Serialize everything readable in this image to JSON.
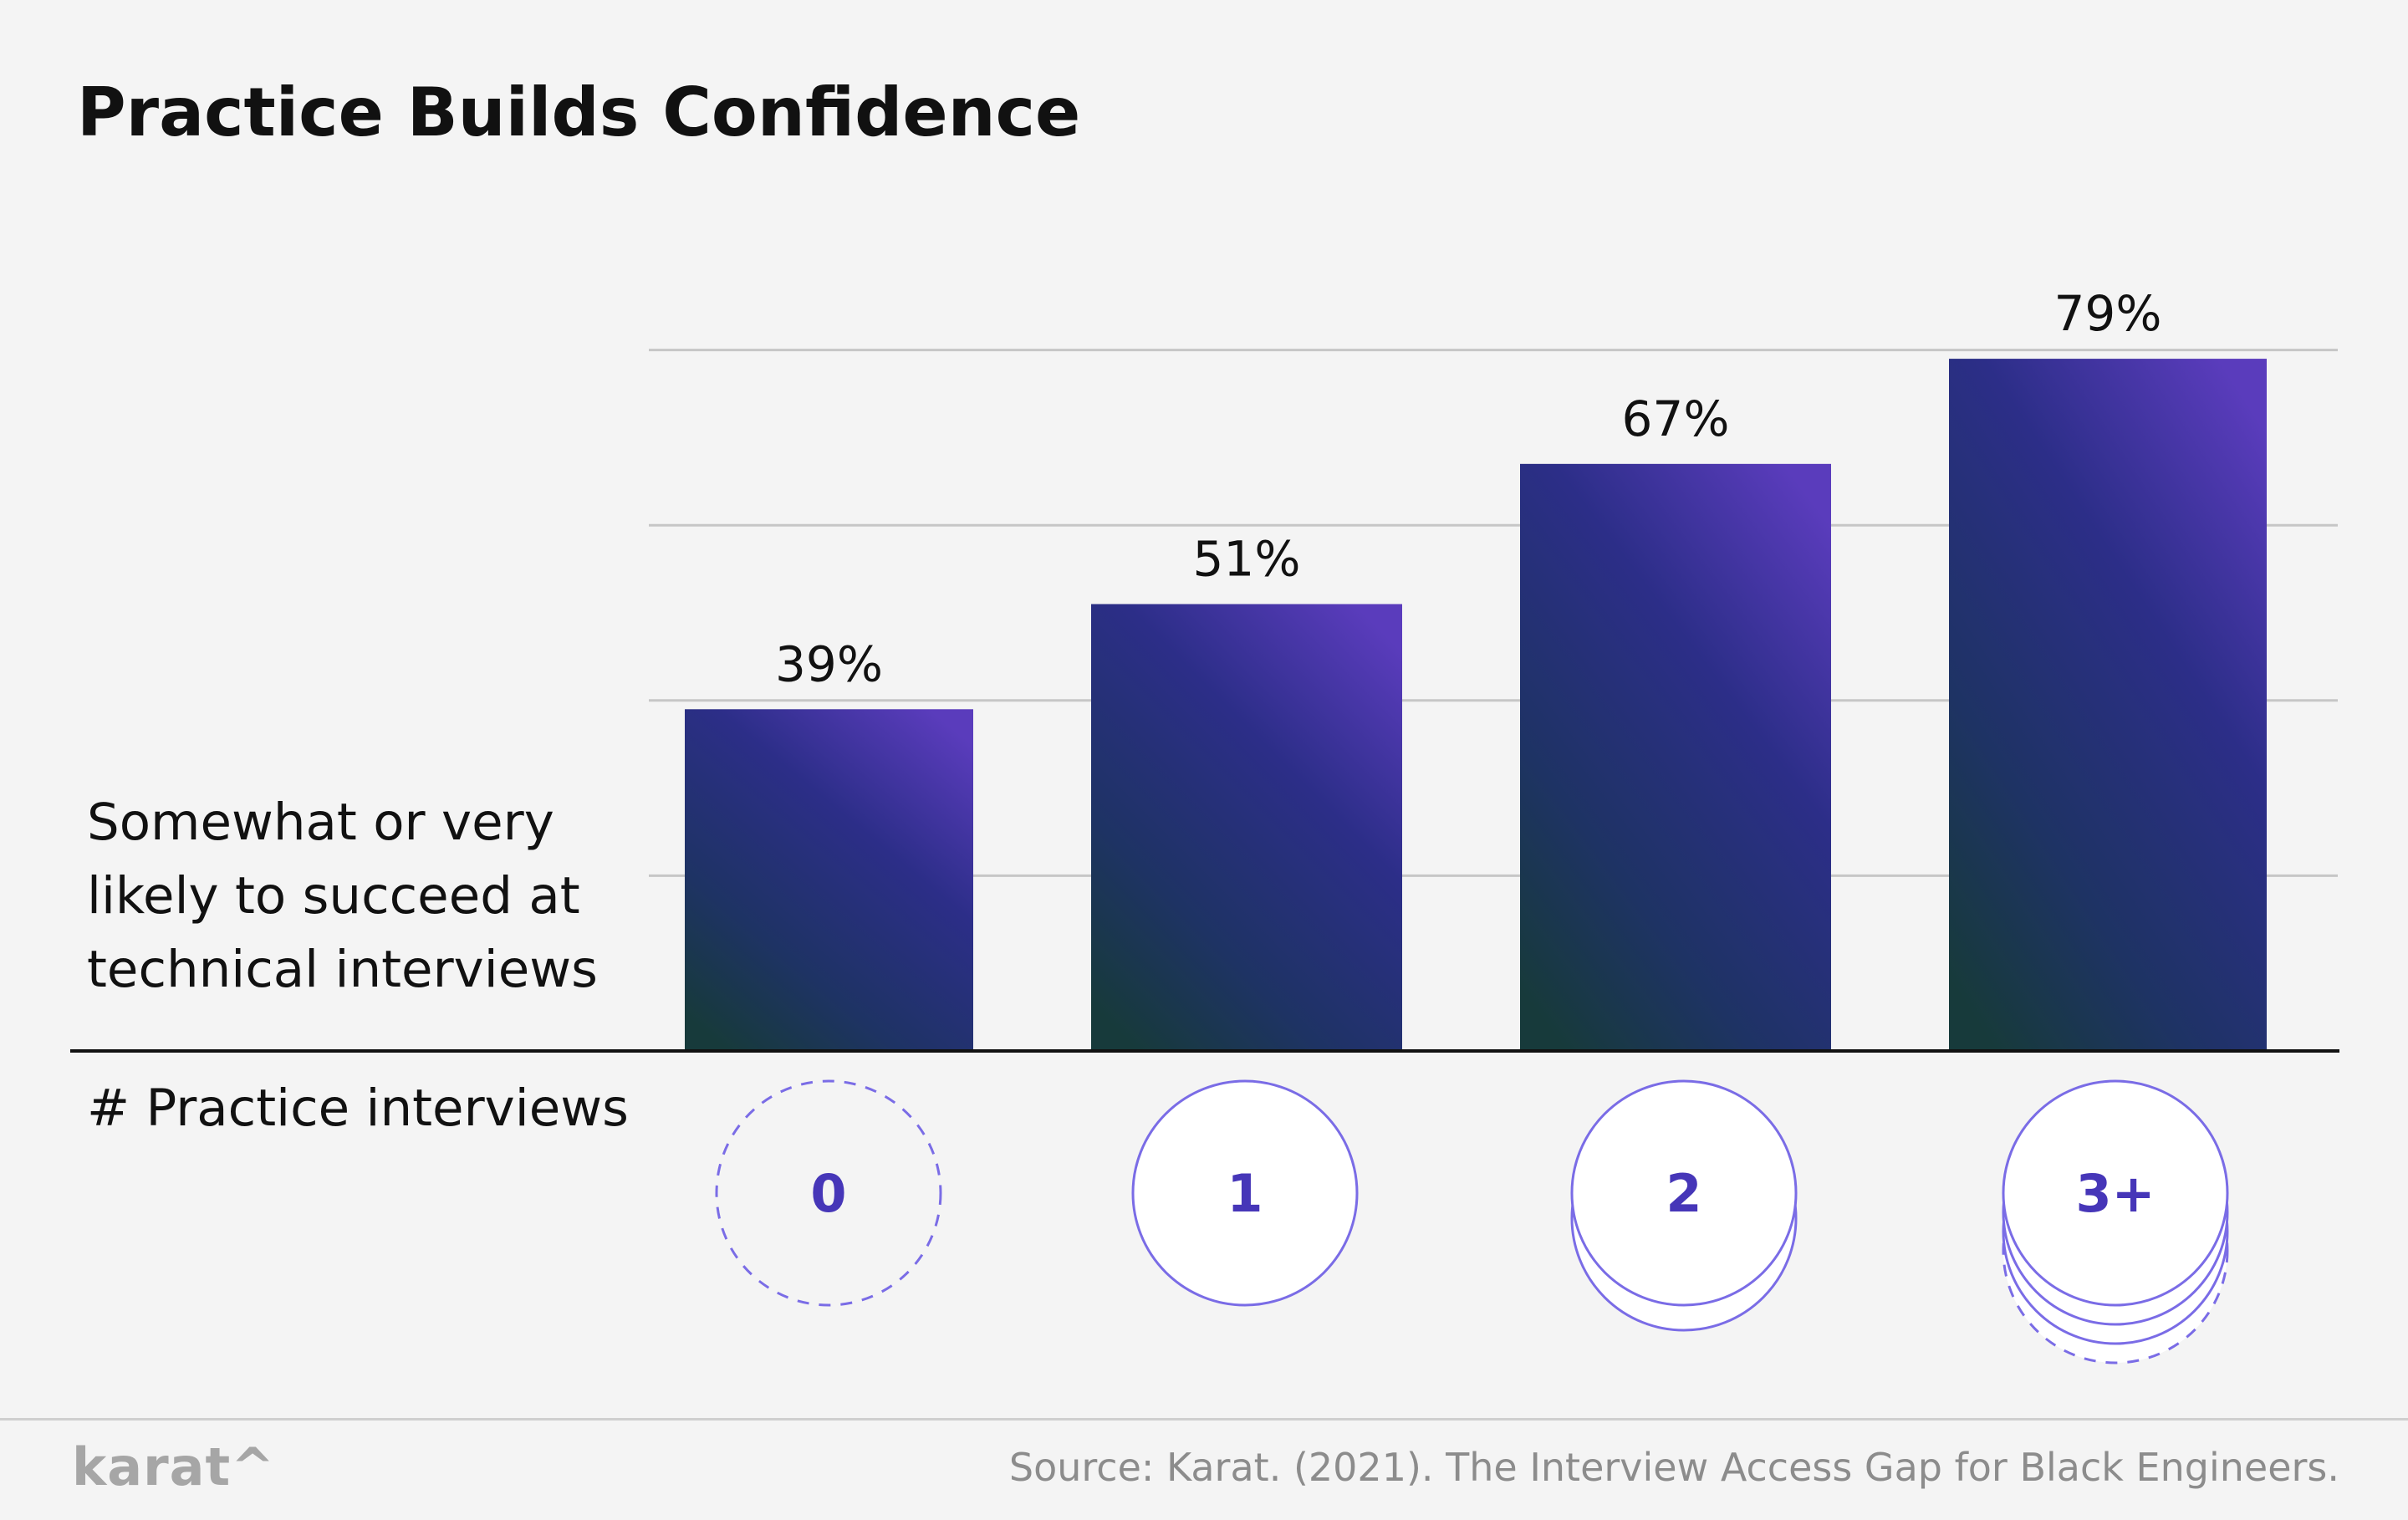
{
  "chart_data": {
    "type": "bar",
    "title": "Practice Builds Confidence",
    "ylabel": "Somewhat or very likely to succeed at technical interviews",
    "xlabel": "# Practice interviews",
    "categories": [
      "0",
      "1",
      "2",
      "3+"
    ],
    "values": [
      39,
      51,
      67,
      79
    ],
    "value_labels": [
      "39%",
      "51%",
      "67%",
      "79%"
    ],
    "ylim": [
      0,
      100
    ],
    "grid": true
  },
  "footer": {
    "logo": "karat^",
    "source": "Source: Karat. (2021). The Interview Access Gap for Black Engineers."
  },
  "colors": {
    "bar_top": "#5a3cbc",
    "bar_mid": "#2c2e88",
    "bar_bottom": "#173a3b",
    "accent": "#4636b8",
    "circle_stroke": "#7a6ce6",
    "grid": "#c6c6c6",
    "axis": "#111111"
  }
}
